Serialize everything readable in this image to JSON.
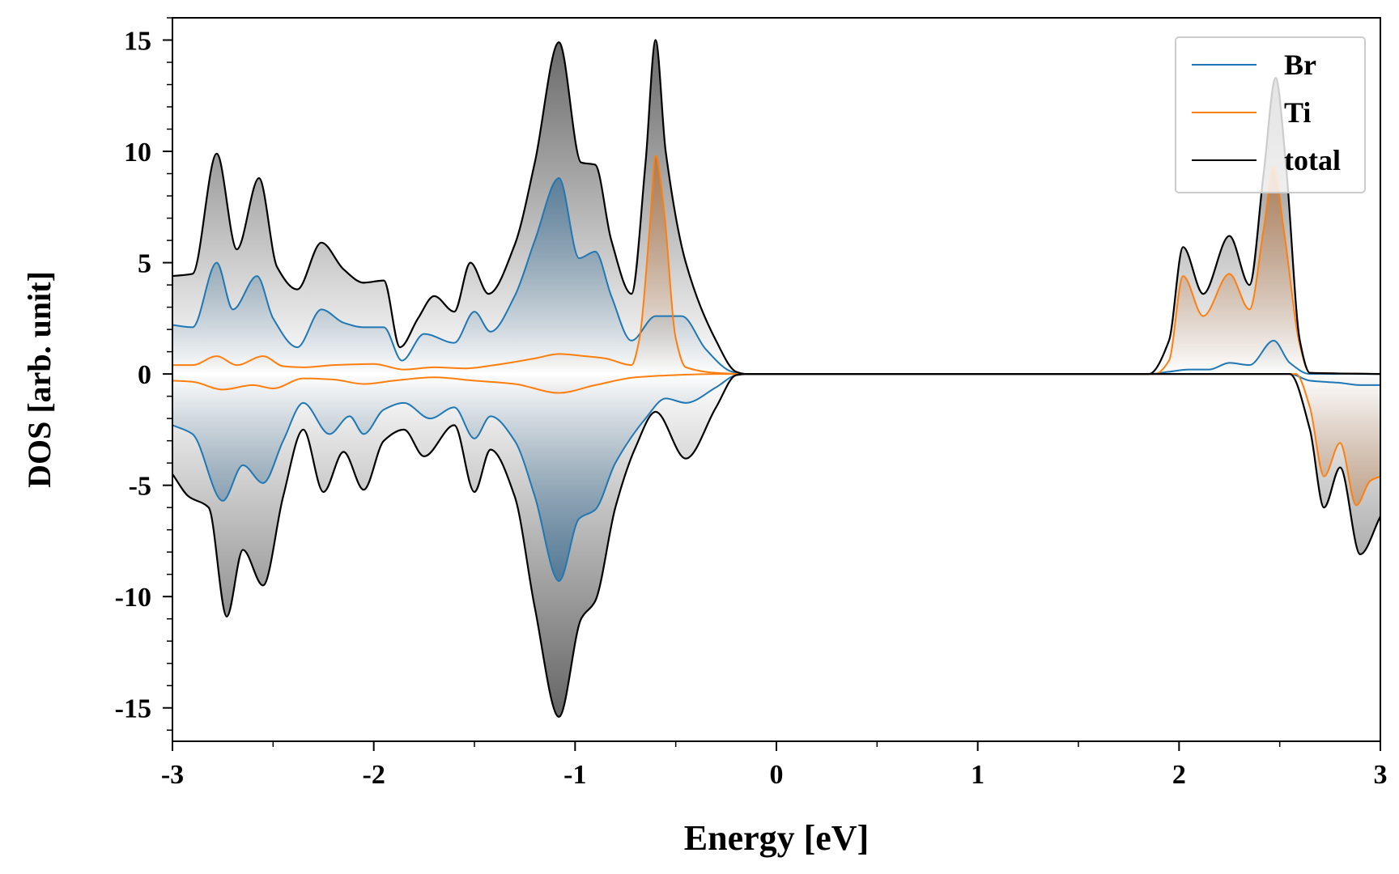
{
  "chart_data": {
    "type": "line",
    "title": "",
    "xlabel": "Energy [eV]",
    "ylabel": "DOS [arb. unit]",
    "xlim": [
      -3,
      3
    ],
    "ylim": [
      -16.5,
      16
    ],
    "x_ticks": [
      -3,
      -2,
      -1,
      0,
      1,
      2,
      3
    ],
    "x_tick_labels": [
      "-3",
      "-2",
      "-1",
      "0",
      "1",
      "2",
      "3"
    ],
    "y_ticks": [
      -15,
      -10,
      -5,
      0,
      5,
      10,
      15
    ],
    "y_tick_labels": [
      "-15",
      "-10",
      "-5",
      "0",
      "5",
      "10",
      "15"
    ],
    "grid": false,
    "legend_position": "top-right",
    "series": [
      {
        "name": "Br",
        "color": "#1f77b4",
        "fill": true,
        "up": [
          [
            -3.0,
            2.2
          ],
          [
            -2.9,
            2.1
          ],
          [
            -2.78,
            5.0
          ],
          [
            -2.7,
            2.9
          ],
          [
            -2.58,
            4.4
          ],
          [
            -2.5,
            2.5
          ],
          [
            -2.38,
            1.2
          ],
          [
            -2.26,
            2.9
          ],
          [
            -2.15,
            2.3
          ],
          [
            -2.05,
            2.1
          ],
          [
            -1.95,
            2.1
          ],
          [
            -1.86,
            0.6
          ],
          [
            -1.75,
            1.8
          ],
          [
            -1.6,
            1.4
          ],
          [
            -1.5,
            2.8
          ],
          [
            -1.42,
            1.9
          ],
          [
            -1.3,
            3.5
          ],
          [
            -1.2,
            6.0
          ],
          [
            -1.08,
            8.8
          ],
          [
            -0.98,
            5.2
          ],
          [
            -0.9,
            5.5
          ],
          [
            -0.82,
            3.5
          ],
          [
            -0.72,
            1.5
          ],
          [
            -0.6,
            2.6
          ],
          [
            -0.47,
            2.6
          ],
          [
            -0.35,
            1.1
          ],
          [
            -0.22,
            0.1
          ],
          [
            -0.15,
            0.0
          ],
          [
            1.85,
            0.0
          ],
          [
            1.95,
            0.1
          ],
          [
            2.05,
            0.2
          ],
          [
            2.15,
            0.2
          ],
          [
            2.25,
            0.5
          ],
          [
            2.35,
            0.4
          ],
          [
            2.47,
            1.5
          ],
          [
            2.55,
            0.5
          ],
          [
            2.65,
            0.0
          ],
          [
            3.0,
            0.0
          ]
        ],
        "down": [
          [
            -3.0,
            -2.3
          ],
          [
            -2.9,
            -2.7
          ],
          [
            -2.75,
            -5.7
          ],
          [
            -2.65,
            -4.1
          ],
          [
            -2.55,
            -4.9
          ],
          [
            -2.45,
            -3.0
          ],
          [
            -2.35,
            -1.3
          ],
          [
            -2.22,
            -2.7
          ],
          [
            -2.12,
            -1.9
          ],
          [
            -2.05,
            -2.7
          ],
          [
            -1.95,
            -1.6
          ],
          [
            -1.85,
            -1.3
          ],
          [
            -1.72,
            -2.0
          ],
          [
            -1.6,
            -1.5
          ],
          [
            -1.5,
            -2.9
          ],
          [
            -1.42,
            -1.9
          ],
          [
            -1.3,
            -3.0
          ],
          [
            -1.2,
            -5.5
          ],
          [
            -1.08,
            -9.3
          ],
          [
            -0.98,
            -6.5
          ],
          [
            -0.9,
            -6.1
          ],
          [
            -0.8,
            -4.0
          ],
          [
            -0.65,
            -2.0
          ],
          [
            -0.55,
            -1.1
          ],
          [
            -0.45,
            -1.3
          ],
          [
            -0.3,
            -0.6
          ],
          [
            -0.2,
            -0.05
          ],
          [
            -0.15,
            0.0
          ],
          [
            2.55,
            0.0
          ],
          [
            2.65,
            -0.3
          ],
          [
            2.8,
            -0.4
          ],
          [
            2.9,
            -0.5
          ],
          [
            3.0,
            -0.5
          ]
        ]
      },
      {
        "name": "Ti",
        "color": "#ff7f0e",
        "fill": true,
        "up": [
          [
            -3.0,
            0.4
          ],
          [
            -2.9,
            0.4
          ],
          [
            -2.78,
            0.8
          ],
          [
            -2.68,
            0.4
          ],
          [
            -2.55,
            0.8
          ],
          [
            -2.45,
            0.35
          ],
          [
            -2.35,
            0.3
          ],
          [
            -2.2,
            0.4
          ],
          [
            -2.0,
            0.45
          ],
          [
            -1.85,
            0.2
          ],
          [
            -1.7,
            0.3
          ],
          [
            -1.55,
            0.25
          ],
          [
            -1.4,
            0.4
          ],
          [
            -1.2,
            0.7
          ],
          [
            -1.08,
            0.9
          ],
          [
            -0.95,
            0.8
          ],
          [
            -0.85,
            0.7
          ],
          [
            -0.72,
            0.4
          ],
          [
            -0.68,
            1.6
          ],
          [
            -0.63,
            6.5
          ],
          [
            -0.6,
            9.8
          ],
          [
            -0.56,
            7.5
          ],
          [
            -0.5,
            1.6
          ],
          [
            -0.45,
            0.3
          ],
          [
            -0.3,
            0.05
          ],
          [
            -0.15,
            0.0
          ],
          [
            1.88,
            0.0
          ],
          [
            1.95,
            0.6
          ],
          [
            2.02,
            4.4
          ],
          [
            2.12,
            2.6
          ],
          [
            2.25,
            4.5
          ],
          [
            2.35,
            2.9
          ],
          [
            2.42,
            6.5
          ],
          [
            2.47,
            9.3
          ],
          [
            2.52,
            6.5
          ],
          [
            2.6,
            1.3
          ],
          [
            2.65,
            0.05
          ],
          [
            3.0,
            0.0
          ]
        ],
        "down": [
          [
            -3.0,
            -0.3
          ],
          [
            -2.9,
            -0.35
          ],
          [
            -2.75,
            -0.7
          ],
          [
            -2.6,
            -0.5
          ],
          [
            -2.5,
            -0.65
          ],
          [
            -2.35,
            -0.2
          ],
          [
            -2.2,
            -0.25
          ],
          [
            -2.05,
            -0.45
          ],
          [
            -1.9,
            -0.3
          ],
          [
            -1.7,
            -0.15
          ],
          [
            -1.5,
            -0.3
          ],
          [
            -1.3,
            -0.45
          ],
          [
            -1.08,
            -0.85
          ],
          [
            -0.9,
            -0.5
          ],
          [
            -0.7,
            -0.15
          ],
          [
            -0.5,
            -0.05
          ],
          [
            -0.3,
            0.0
          ],
          [
            -0.15,
            0.0
          ],
          [
            2.58,
            0.0
          ],
          [
            2.65,
            -1.5
          ],
          [
            2.72,
            -4.6
          ],
          [
            2.8,
            -3.1
          ],
          [
            2.88,
            -5.9
          ],
          [
            2.95,
            -4.8
          ],
          [
            3.0,
            -4.6
          ]
        ]
      },
      {
        "name": "total",
        "color": "#000000",
        "fill": true,
        "up": [
          [
            -3.0,
            4.4
          ],
          [
            -2.9,
            4.5
          ],
          [
            -2.78,
            9.9
          ],
          [
            -2.68,
            5.6
          ],
          [
            -2.57,
            8.8
          ],
          [
            -2.48,
            4.8
          ],
          [
            -2.38,
            3.8
          ],
          [
            -2.26,
            5.9
          ],
          [
            -2.15,
            4.7
          ],
          [
            -2.05,
            4.1
          ],
          [
            -1.95,
            4.2
          ],
          [
            -1.87,
            1.2
          ],
          [
            -1.78,
            2.5
          ],
          [
            -1.7,
            3.5
          ],
          [
            -1.6,
            2.8
          ],
          [
            -1.52,
            5.0
          ],
          [
            -1.43,
            3.6
          ],
          [
            -1.3,
            5.8
          ],
          [
            -1.2,
            9.5
          ],
          [
            -1.08,
            14.9
          ],
          [
            -0.97,
            9.5
          ],
          [
            -0.9,
            9.4
          ],
          [
            -0.82,
            6.0
          ],
          [
            -0.72,
            3.6
          ],
          [
            -0.65,
            9.5
          ],
          [
            -0.6,
            15.0
          ],
          [
            -0.55,
            10.0
          ],
          [
            -0.45,
            5.0
          ],
          [
            -0.3,
            1.5
          ],
          [
            -0.2,
            0.1
          ],
          [
            -0.15,
            0.0
          ],
          [
            1.85,
            0.0
          ],
          [
            1.95,
            1.5
          ],
          [
            2.02,
            5.7
          ],
          [
            2.12,
            3.6
          ],
          [
            2.25,
            6.2
          ],
          [
            2.35,
            4.0
          ],
          [
            2.42,
            9.0
          ],
          [
            2.48,
            13.3
          ],
          [
            2.53,
            9.5
          ],
          [
            2.6,
            1.5
          ],
          [
            2.65,
            0.05
          ],
          [
            3.0,
            0.0
          ]
        ],
        "down": [
          [
            -3.0,
            -4.5
          ],
          [
            -2.92,
            -5.5
          ],
          [
            -2.82,
            -6.0
          ],
          [
            -2.73,
            -10.9
          ],
          [
            -2.65,
            -7.9
          ],
          [
            -2.55,
            -9.5
          ],
          [
            -2.45,
            -5.5
          ],
          [
            -2.35,
            -2.5
          ],
          [
            -2.25,
            -5.3
          ],
          [
            -2.15,
            -3.5
          ],
          [
            -2.05,
            -5.2
          ],
          [
            -1.95,
            -3.0
          ],
          [
            -1.85,
            -2.5
          ],
          [
            -1.75,
            -3.7
          ],
          [
            -1.6,
            -2.3
          ],
          [
            -1.5,
            -5.3
          ],
          [
            -1.42,
            -3.4
          ],
          [
            -1.3,
            -5.5
          ],
          [
            -1.2,
            -10.5
          ],
          [
            -1.08,
            -15.4
          ],
          [
            -0.97,
            -11.0
          ],
          [
            -0.9,
            -10.2
          ],
          [
            -0.8,
            -6.0
          ],
          [
            -0.7,
            -3.3
          ],
          [
            -0.6,
            -1.7
          ],
          [
            -0.45,
            -3.8
          ],
          [
            -0.3,
            -1.5
          ],
          [
            -0.2,
            -0.05
          ],
          [
            -0.15,
            0.0
          ],
          [
            2.55,
            0.0
          ],
          [
            2.65,
            -2.5
          ],
          [
            2.72,
            -6.0
          ],
          [
            2.8,
            -4.2
          ],
          [
            2.9,
            -8.1
          ],
          [
            3.0,
            -6.4
          ]
        ]
      }
    ]
  }
}
